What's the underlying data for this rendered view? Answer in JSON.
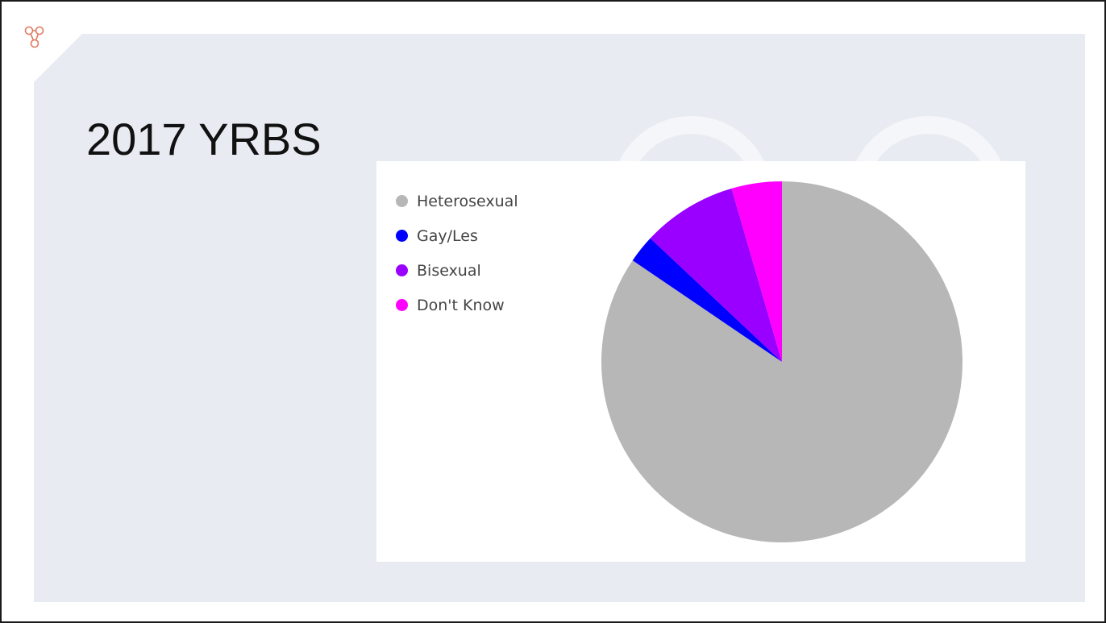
{
  "slide": {
    "title": "2017 YRBS",
    "background_color": "#e8ecf2",
    "corner_icon": "share-nodes-icon",
    "accent_color": "#e07a5f"
  },
  "chart_data": {
    "type": "pie",
    "title": "",
    "legend_position": "top-left",
    "start_angle": "12 o'clock",
    "direction": "clockwise",
    "slices": [
      {
        "label": "Heterosexual",
        "value": 84.5,
        "color": "#b7b7b7"
      },
      {
        "label": "Gay/Les",
        "value": 2.5,
        "color": "#0000ff"
      },
      {
        "label": "Bisexual",
        "value": 8.5,
        "color": "#9900ff"
      },
      {
        "label": "Don't Know",
        "value": 4.5,
        "color": "#ff00ff"
      }
    ]
  }
}
